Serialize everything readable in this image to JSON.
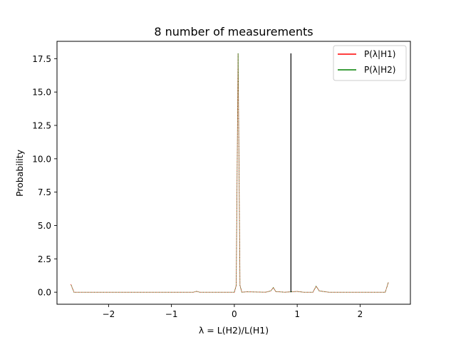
{
  "chart_data": {
    "type": "line",
    "title": "8 number of measurements",
    "xlabel": "λ = L(H2)/L(H1)",
    "ylabel": "Probability",
    "xlim": [
      -2.82,
      2.8
    ],
    "ylim": [
      -0.9,
      18.8
    ],
    "xticks": [
      -2,
      -1,
      0,
      1,
      2
    ],
    "xtick_labels": [
      "−2",
      "−1",
      "0",
      "1",
      "2"
    ],
    "yticks": [
      0.0,
      2.5,
      5.0,
      7.5,
      10.0,
      12.5,
      15.0,
      17.5
    ],
    "ytick_labels": [
      "0.0",
      "2.5",
      "5.0",
      "7.5",
      "10.0",
      "12.5",
      "15.0",
      "17.5"
    ],
    "grid": false,
    "legend_position": "top-right",
    "series": [
      {
        "name": "P(λ|H1)",
        "color": "#ff0000",
        "style": "dotted",
        "x": [
          -2.6,
          -2.55,
          -2.5,
          -2.0,
          -1.5,
          -1.0,
          -0.65,
          -0.6,
          -0.55,
          -0.1,
          0.0,
          0.03,
          0.06,
          0.09,
          0.12,
          0.2,
          0.5,
          0.58,
          0.62,
          0.66,
          0.8,
          1.0,
          1.1,
          1.25,
          1.3,
          1.35,
          1.5,
          2.0,
          2.4,
          2.45
        ],
        "y": [
          0.6,
          0.0,
          0.0,
          0.0,
          0.0,
          0.0,
          0.0,
          0.07,
          0.0,
          0.0,
          0.0,
          0.5,
          17.9,
          0.5,
          0.0,
          0.03,
          0.0,
          0.1,
          0.35,
          0.05,
          0.0,
          0.06,
          0.0,
          0.0,
          0.45,
          0.1,
          0.0,
          0.0,
          0.0,
          0.75
        ]
      },
      {
        "name": "P(λ|H2)",
        "color": "#008000",
        "style": "dotted",
        "x": [
          -2.6,
          -2.55,
          -2.5,
          -2.0,
          -1.5,
          -1.0,
          -0.65,
          -0.6,
          -0.55,
          -0.1,
          0.0,
          0.03,
          0.06,
          0.09,
          0.12,
          0.2,
          0.5,
          0.58,
          0.62,
          0.66,
          0.8,
          1.0,
          1.1,
          1.25,
          1.3,
          1.35,
          1.5,
          2.0,
          2.4,
          2.45
        ],
        "y": [
          0.6,
          0.0,
          0.0,
          0.0,
          0.0,
          0.0,
          0.0,
          0.07,
          0.0,
          0.0,
          0.0,
          0.5,
          17.9,
          0.5,
          0.0,
          0.03,
          0.0,
          0.1,
          0.35,
          0.05,
          0.0,
          0.06,
          0.0,
          0.0,
          0.45,
          0.1,
          0.0,
          0.0,
          0.0,
          0.75
        ]
      }
    ],
    "vline": {
      "x": 0.9,
      "y_from": 0.0,
      "y_to": 17.9,
      "color": "#000000"
    }
  }
}
